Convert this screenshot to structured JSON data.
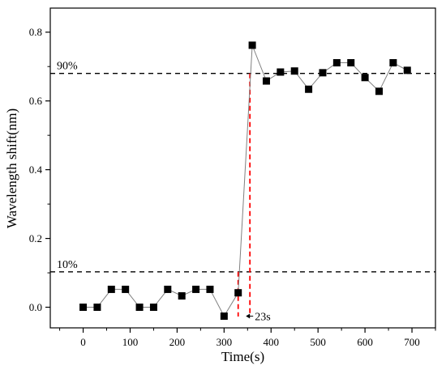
{
  "chart_data": {
    "type": "scatter",
    "title": "",
    "xlabel": "Time(s)",
    "ylabel": "Wavelength shift(nm)",
    "xlim": [
      -70,
      750
    ],
    "ylim": [
      -0.06,
      0.87
    ],
    "xticks": [
      0,
      100,
      200,
      300,
      400,
      500,
      600,
      700
    ],
    "yticks": [
      0.0,
      0.2,
      0.4,
      0.6,
      0.8
    ],
    "xtick_labels": [
      "0",
      "100",
      "200",
      "300",
      "400",
      "500",
      "600",
      "700"
    ],
    "ytick_labels": [
      "0.0",
      "0.2",
      "0.4",
      "0.6",
      "0.8"
    ],
    "series": [
      {
        "marker": "square",
        "line_color": "#808080",
        "marker_color": "#000000",
        "x": [
          0,
          30,
          60,
          90,
          120,
          150,
          180,
          210,
          240,
          270,
          300,
          330,
          360,
          390,
          420,
          450,
          480,
          510,
          540,
          570,
          600,
          630,
          660,
          690
        ],
        "y": [
          0.0,
          0.0,
          0.052,
          0.052,
          0.0,
          0.0,
          0.052,
          0.033,
          0.052,
          0.052,
          -0.026,
          0.042,
          0.762,
          0.658,
          0.684,
          0.687,
          0.634,
          0.682,
          0.711,
          0.711,
          0.668,
          0.628,
          0.711,
          0.689
        ]
      }
    ],
    "reference_lines": [
      {
        "label": "90%",
        "y": 0.68,
        "color": "#000000"
      },
      {
        "label": "10%",
        "y": 0.103,
        "color": "#000000"
      }
    ],
    "response_markers": {
      "color": "#ff0000",
      "x_start": 330,
      "x_end": 355,
      "y_top_start": 0.103,
      "y_top_end": 0.68,
      "label": "23s"
    },
    "grid": false,
    "legend": "none"
  }
}
